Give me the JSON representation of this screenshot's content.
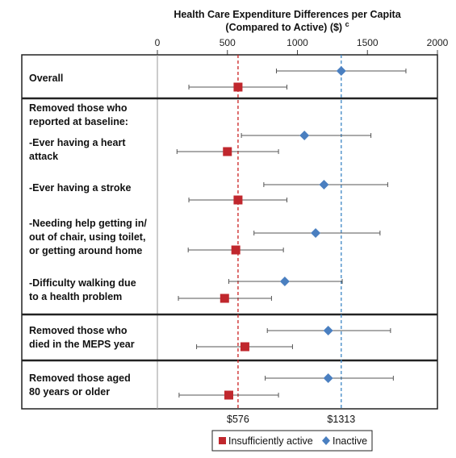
{
  "chart_data": {
    "type": "scatter",
    "title_line1": "Health Care Expenditure Differences per Capita",
    "title_line2": "(Compared to Active) ($) ",
    "title_superscript": "c",
    "xlim": [
      0,
      2000
    ],
    "x_ticks": [
      "0",
      "500",
      "1000",
      "1500",
      "2000"
    ],
    "x_tick_values": [
      0,
      500,
      1000,
      1500,
      2000
    ],
    "reference_lines": [
      {
        "value": 576,
        "label": "$576",
        "color": "#cc2222"
      },
      {
        "value": 1313,
        "label": "$1313",
        "color": "#3d86c6"
      }
    ],
    "series": [
      {
        "name": "Insufficiently active",
        "color": "#c0272d",
        "marker": "square"
      },
      {
        "name": "Inactive",
        "color": "#4a7fc0",
        "marker": "diamond"
      }
    ],
    "rows": [
      {
        "label_lines": [
          "Overall"
        ],
        "inactive": {
          "est": 1313,
          "lo": 850,
          "hi": 1775
        },
        "insufficient": {
          "est": 576,
          "lo": 225,
          "hi": 925
        }
      },
      {
        "label_lines": [
          "Removed those who",
          "reported at baseline:"
        ],
        "header": true
      },
      {
        "label_lines": [
          "-Ever having a heart",
          " attack"
        ],
        "inactive": {
          "est": 1050,
          "lo": 600,
          "hi": 1525
        },
        "insufficient": {
          "est": 500,
          "lo": 140,
          "hi": 865
        }
      },
      {
        "label_lines": [
          "-Ever having a stroke"
        ],
        "inactive": {
          "est": 1190,
          "lo": 760,
          "hi": 1645
        },
        "insufficient": {
          "est": 576,
          "lo": 225,
          "hi": 925
        }
      },
      {
        "label_lines": [
          "-Needing help getting in/",
          " out of chair, using toilet,",
          " or getting around home"
        ],
        "inactive": {
          "est": 1130,
          "lo": 690,
          "hi": 1590
        },
        "insufficient": {
          "est": 560,
          "lo": 220,
          "hi": 900
        }
      },
      {
        "label_lines": [
          "-Difficulty walking due",
          "  to a health problem"
        ],
        "inactive": {
          "est": 910,
          "lo": 510,
          "hi": 1320
        },
        "insufficient": {
          "est": 480,
          "lo": 150,
          "hi": 815
        }
      },
      {
        "label_lines": [
          "Removed those who",
          "died in the MEPS year"
        ],
        "inactive": {
          "est": 1220,
          "lo": 785,
          "hi": 1665
        },
        "insufficient": {
          "est": 625,
          "lo": 280,
          "hi": 965
        }
      },
      {
        "label_lines": [
          "Removed those aged",
          "80 years or older"
        ],
        "inactive": {
          "est": 1220,
          "lo": 770,
          "hi": 1685
        },
        "insufficient": {
          "est": 510,
          "lo": 155,
          "hi": 865
        }
      }
    ],
    "grid": false,
    "legend_position": "bottom-right"
  },
  "colors": {
    "insufficient": "#c0272d",
    "inactive": "#4a7fc0",
    "ref_insufficient": "#cc2222",
    "ref_inactive": "#3d86c6"
  }
}
